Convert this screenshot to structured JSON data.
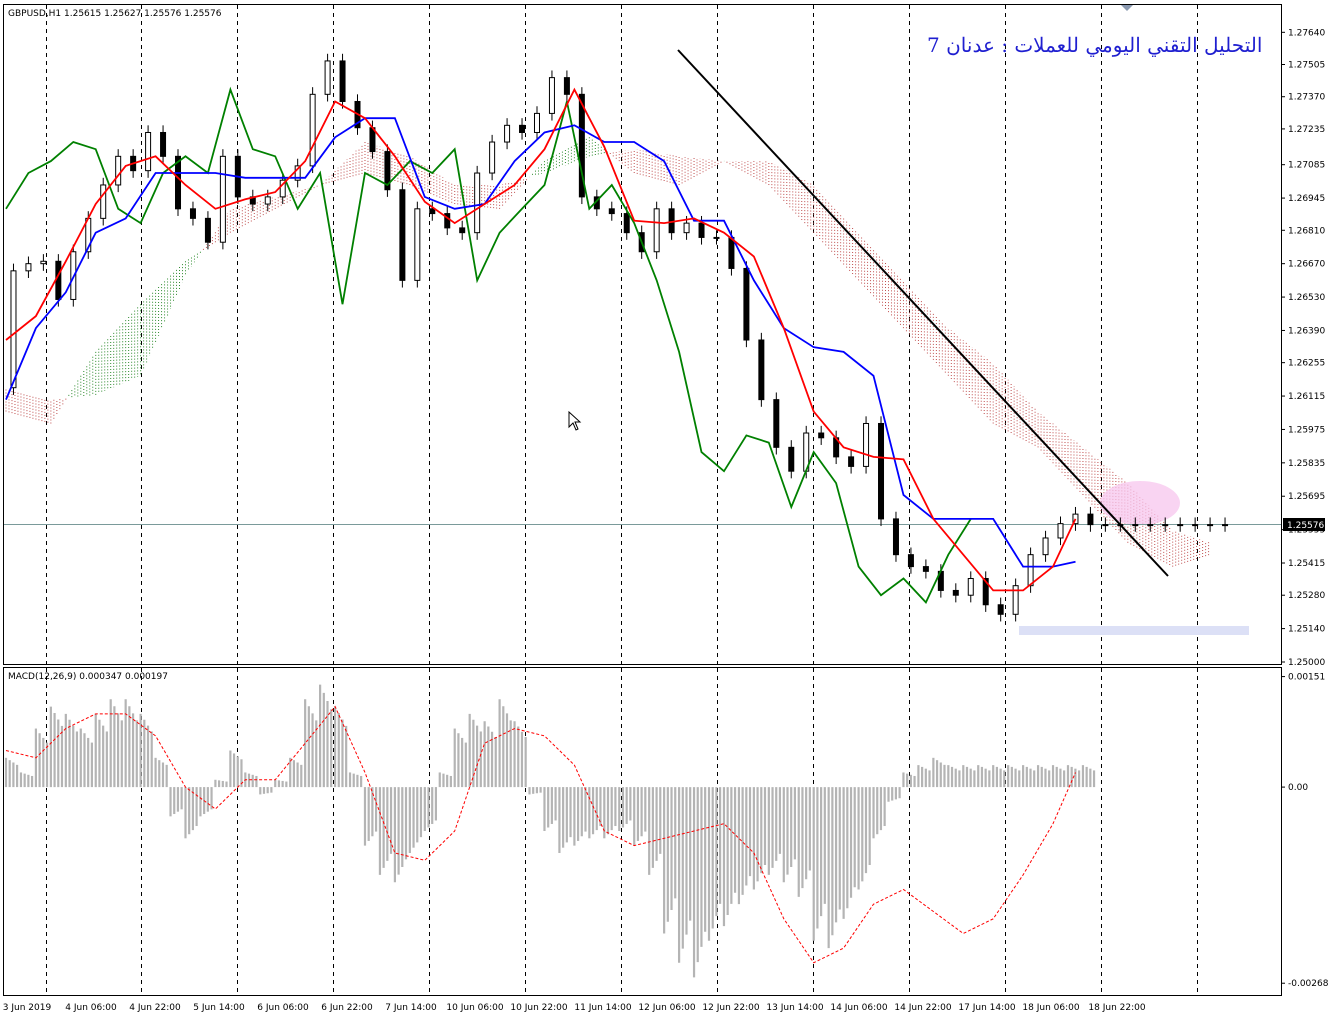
{
  "main_header": "GBPUSD,H1  1.25615 1.25627 1.25576 1.25576",
  "annotation": "التحليل التقني اليومي للعملات : عدنان 7",
  "macd_header": "MACD(12,26,9) 0.000347 0.000197",
  "colors": {
    "background": "#ffffff",
    "grid": "#000000",
    "price_line": "#7a9a9a",
    "tenkan": "#ff0000",
    "kijun": "#0000ff",
    "chikou": "#008000",
    "cloud_bull": "#2e8b2e",
    "cloud_bear": "#c05050",
    "trendline": "#000000",
    "macd_hist": "#b4b4b4",
    "macd_signal": "#ff0000",
    "support_zone": "#dce0f6",
    "current_price_bg": "#000000"
  },
  "chart_data": [
    {
      "type": "line",
      "title": "GBPUSD,H1",
      "ohlc_header": {
        "open": 1.25615,
        "high": 1.25627,
        "low": 1.25576,
        "close": 1.25576
      },
      "current_price": 1.25576,
      "ylim": [
        1.25,
        1.277
      ],
      "y_ticks": [
        "1.27640",
        "1.27505",
        "1.27370",
        "1.27235",
        "1.27085",
        "1.26945",
        "1.26810",
        "1.26670",
        "1.26530",
        "1.26390",
        "1.26255",
        "1.26115",
        "1.25975",
        "1.25835",
        "1.25695",
        "1.25555",
        "1.25415",
        "1.25280",
        "1.25140",
        "1.25000"
      ],
      "x_labels": [
        "3 Jun 2019",
        "4 Jun 06:00",
        "4 Jun 22:00",
        "5 Jun 14:00",
        "6 Jun 06:00",
        "6 Jun 22:00",
        "7 Jun 14:00",
        "10 Jun 06:00",
        "10 Jun 22:00",
        "11 Jun 14:00",
        "12 Jun 06:00",
        "12 Jun 22:00",
        "13 Jun 14:00",
        "14 Jun 06:00",
        "14 Jun 22:00",
        "17 Jun 14:00",
        "18 Jun 06:00",
        "18 Jun 22:00"
      ],
      "series": [
        {
          "name": "",
          "legend_role": "close",
          "color": "#000000",
          "x": [
            0,
            4,
            8,
            12,
            16,
            20,
            24,
            28,
            32,
            36,
            40,
            44,
            48,
            52,
            56,
            60,
            64,
            68,
            72,
            76,
            80,
            84,
            88,
            92,
            96,
            100,
            104,
            108,
            112,
            116,
            120,
            124,
            128,
            132,
            136,
            140,
            144,
            148,
            152,
            156,
            160,
            164,
            168,
            172,
            176,
            180,
            184,
            188,
            192,
            196,
            200,
            204,
            208,
            212,
            216,
            220,
            224,
            228,
            232,
            236,
            240,
            244,
            248,
            252,
            256,
            260,
            264,
            268,
            272,
            276,
            280,
            284,
            288,
            292,
            296,
            300,
            304,
            308,
            312,
            316,
            320,
            324,
            328
          ],
          "y": [
            1.2615,
            1.2664,
            1.2667,
            1.2668,
            1.2652,
            1.2672,
            1.2686,
            1.27,
            1.2712,
            1.2706,
            1.2722,
            1.2712,
            1.269,
            1.2686,
            1.2676,
            1.2712,
            1.2695,
            1.2692,
            1.2695,
            1.2702,
            1.2708,
            1.2738,
            1.2752,
            1.2735,
            1.2724,
            1.2714,
            1.2698,
            1.266,
            1.269,
            1.2688,
            1.2682,
            1.268,
            1.2705,
            1.2718,
            1.2725,
            1.2722,
            1.273,
            1.2745,
            1.2738,
            1.2695,
            1.269,
            1.2688,
            1.268,
            1.2672,
            1.269,
            1.268,
            1.2684,
            1.2678,
            1.2678,
            1.2665,
            1.2635,
            1.261,
            1.259,
            1.258,
            1.2596,
            1.2594,
            1.2586,
            1.2582,
            1.26,
            1.256,
            1.2545,
            1.254,
            1.2538,
            1.253,
            1.2528,
            1.2535,
            1.2524,
            1.252,
            1.2532,
            1.2545,
            1.2552,
            1.2558,
            1.2562,
            1.25576,
            1.25576,
            1.25576,
            1.25576,
            1.25576,
            1.25576,
            1.25576,
            1.25576,
            1.25576,
            1.25576
          ]
        },
        {
          "name": "",
          "legend_role": "tenkan",
          "color": "#ff0000",
          "x": [
            0,
            8,
            16,
            24,
            32,
            40,
            48,
            56,
            64,
            72,
            80,
            88,
            96,
            104,
            112,
            120,
            128,
            136,
            144,
            152,
            160,
            168,
            176,
            184,
            192,
            200,
            208,
            216,
            224,
            232,
            240,
            248,
            256,
            264,
            272,
            280,
            286
          ],
          "y": [
            1.2635,
            1.2645,
            1.2668,
            1.2692,
            1.2708,
            1.2712,
            1.27,
            1.269,
            1.2694,
            1.2697,
            1.271,
            1.2735,
            1.2728,
            1.2712,
            1.2693,
            1.2684,
            1.2692,
            1.27,
            1.2715,
            1.274,
            1.2716,
            1.2685,
            1.2684,
            1.2686,
            1.268,
            1.267,
            1.264,
            1.2605,
            1.259,
            1.2586,
            1.2585,
            1.256,
            1.2545,
            1.253,
            1.253,
            1.254,
            1.256
          ]
        },
        {
          "name": "",
          "legend_role": "kijun",
          "color": "#0000ff",
          "x": [
            0,
            8,
            16,
            24,
            32,
            40,
            48,
            56,
            64,
            72,
            80,
            88,
            96,
            104,
            112,
            120,
            128,
            136,
            144,
            152,
            160,
            168,
            176,
            184,
            192,
            200,
            208,
            216,
            224,
            232,
            240,
            248,
            256,
            264,
            272,
            280,
            286
          ],
          "y": [
            1.261,
            1.264,
            1.2655,
            1.268,
            1.2686,
            1.2705,
            1.2705,
            1.2705,
            1.2703,
            1.2703,
            1.2703,
            1.272,
            1.2728,
            1.2728,
            1.2695,
            1.269,
            1.2692,
            1.271,
            1.2722,
            1.2725,
            1.2718,
            1.2718,
            1.271,
            1.2685,
            1.2685,
            1.266,
            1.264,
            1.2632,
            1.263,
            1.262,
            1.257,
            1.256,
            1.256,
            1.256,
            1.254,
            1.254,
            1.2542
          ]
        },
        {
          "name": "",
          "legend_role": "chikou",
          "color": "#008000",
          "x": [
            0,
            6,
            12,
            18,
            24,
            30,
            36,
            42,
            48,
            54,
            60,
            66,
            72,
            78,
            84,
            90,
            96,
            102,
            108,
            114,
            120,
            126,
            132,
            138,
            144,
            150,
            156,
            162,
            168,
            174,
            180,
            186,
            192,
            198,
            204,
            210,
            216,
            222,
            228,
            234,
            240,
            246,
            252,
            258
          ],
          "y": [
            1.269,
            1.2705,
            1.271,
            1.2718,
            1.2715,
            1.269,
            1.2684,
            1.2705,
            1.2712,
            1.2705,
            1.274,
            1.2715,
            1.2712,
            1.269,
            1.2705,
            1.265,
            1.2705,
            1.27,
            1.271,
            1.2705,
            1.2715,
            1.266,
            1.268,
            1.269,
            1.27,
            1.2735,
            1.269,
            1.27,
            1.2684,
            1.266,
            1.263,
            1.2588,
            1.258,
            1.2595,
            1.2592,
            1.2565,
            1.2588,
            1.2575,
            1.254,
            1.2528,
            1.2535,
            1.2525,
            1.2545,
            1.256
          ]
        },
        {
          "name": "",
          "legend_role": "senkou_a",
          "color": "#2e8b2e",
          "x": [
            0,
            12,
            24,
            36,
            48,
            60,
            72,
            84,
            96,
            108,
            120,
            132,
            144,
            156,
            168,
            180,
            192,
            204,
            216,
            228,
            240,
            252,
            264,
            276,
            288,
            300,
            312,
            322
          ],
          "y": [
            1.2605,
            1.26,
            1.263,
            1.265,
            1.2668,
            1.268,
            1.269,
            1.27,
            1.2705,
            1.27,
            1.2692,
            1.269,
            1.271,
            1.272,
            1.2705,
            1.27,
            1.271,
            1.27,
            1.268,
            1.266,
            1.264,
            1.262,
            1.26,
            1.259,
            1.257,
            1.255,
            1.254,
            1.2545
          ]
        },
        {
          "name": "",
          "legend_role": "senkou_b",
          "color": "#c05050",
          "x": [
            0,
            12,
            24,
            36,
            48,
            60,
            72,
            84,
            96,
            108,
            120,
            132,
            144,
            156,
            168,
            180,
            192,
            204,
            216,
            228,
            240,
            252,
            264,
            276,
            288,
            300,
            312,
            322
          ],
          "y": [
            1.2615,
            1.261,
            1.2612,
            1.262,
            1.2662,
            1.269,
            1.2695,
            1.27,
            1.2718,
            1.2712,
            1.27,
            1.27,
            1.2705,
            1.2712,
            1.2715,
            1.2712,
            1.271,
            1.271,
            1.27,
            1.268,
            1.266,
            1.264,
            1.2625,
            1.2605,
            1.259,
            1.2575,
            1.2555,
            1.255
          ]
        }
      ]
    },
    {
      "type": "bar",
      "title": "MACD(12,26,9)",
      "macd": 0.000347,
      "signal": 0.000197,
      "ylim": [
        -0.0028,
        0.0016
      ],
      "y_ticks": [
        "0.00151",
        "0.00",
        "-0.00268"
      ],
      "histogram_x": [
        0,
        4,
        8,
        12,
        16,
        20,
        24,
        28,
        32,
        36,
        40,
        44,
        48,
        52,
        56,
        60,
        64,
        68,
        72,
        76,
        80,
        84,
        88,
        92,
        96,
        100,
        104,
        108,
        112,
        116,
        120,
        124,
        128,
        132,
        136,
        140,
        144,
        148,
        152,
        156,
        160,
        164,
        168,
        172,
        176,
        180,
        184,
        188,
        192,
        196,
        200,
        204,
        208,
        212,
        216,
        220,
        224,
        228,
        232,
        236,
        240,
        244,
        248,
        252,
        256,
        260,
        264,
        268,
        272,
        276,
        280,
        284,
        288
      ],
      "histogram": [
        0.0004,
        0.0002,
        0.0008,
        0.0011,
        0.001,
        0.0008,
        0.001,
        0.0012,
        0.0012,
        0.001,
        0.0004,
        -0.0004,
        -0.0007,
        -0.0004,
        0.0001,
        0.0005,
        0.0002,
        -0.0001,
        0.0001,
        0.0004,
        0.0012,
        0.0014,
        0.0011,
        0.0002,
        -0.0008,
        -0.0012,
        -0.0013,
        -0.0009,
        -0.0006,
        0.0002,
        0.0008,
        0.001,
        0.0009,
        0.0012,
        0.0009,
        -0.0001,
        -0.0006,
        -0.0009,
        -0.0008,
        -0.0007,
        -0.0007,
        -0.0006,
        -0.0008,
        -0.0012,
        -0.002,
        -0.0024,
        -0.0026,
        -0.0021,
        -0.0019,
        -0.0016,
        -0.0014,
        -0.0012,
        -0.0013,
        -0.0015,
        -0.0021,
        -0.0022,
        -0.0018,
        -0.0014,
        -0.0007,
        -0.0002,
        0.0002,
        0.0003,
        0.0004,
        0.0003,
        0.0003,
        0.0003,
        0.0003,
        0.0003,
        0.0003,
        0.0003,
        0.0003,
        0.0003,
        0.0003
      ],
      "signal_x": [
        0,
        8,
        16,
        24,
        32,
        40,
        48,
        56,
        64,
        72,
        80,
        88,
        96,
        104,
        112,
        120,
        128,
        136,
        144,
        152,
        160,
        168,
        176,
        184,
        192,
        200,
        208,
        216,
        224,
        232,
        240,
        248,
        256,
        264,
        272,
        280,
        286
      ],
      "signal_values": [
        0.0005,
        0.0004,
        0.0008,
        0.001,
        0.001,
        0.0007,
        0.0,
        -0.0003,
        0.0001,
        0.0001,
        0.0006,
        0.0011,
        0.0002,
        -0.0009,
        -0.001,
        -0.0006,
        0.0006,
        0.0008,
        0.0007,
        0.0003,
        -0.0006,
        -0.0008,
        -0.0007,
        -0.0006,
        -0.0005,
        -0.0009,
        -0.0018,
        -0.0024,
        -0.0022,
        -0.0016,
        -0.0014,
        -0.0017,
        -0.002,
        -0.0018,
        -0.0012,
        -0.0005,
        0.0002
      ]
    }
  ]
}
